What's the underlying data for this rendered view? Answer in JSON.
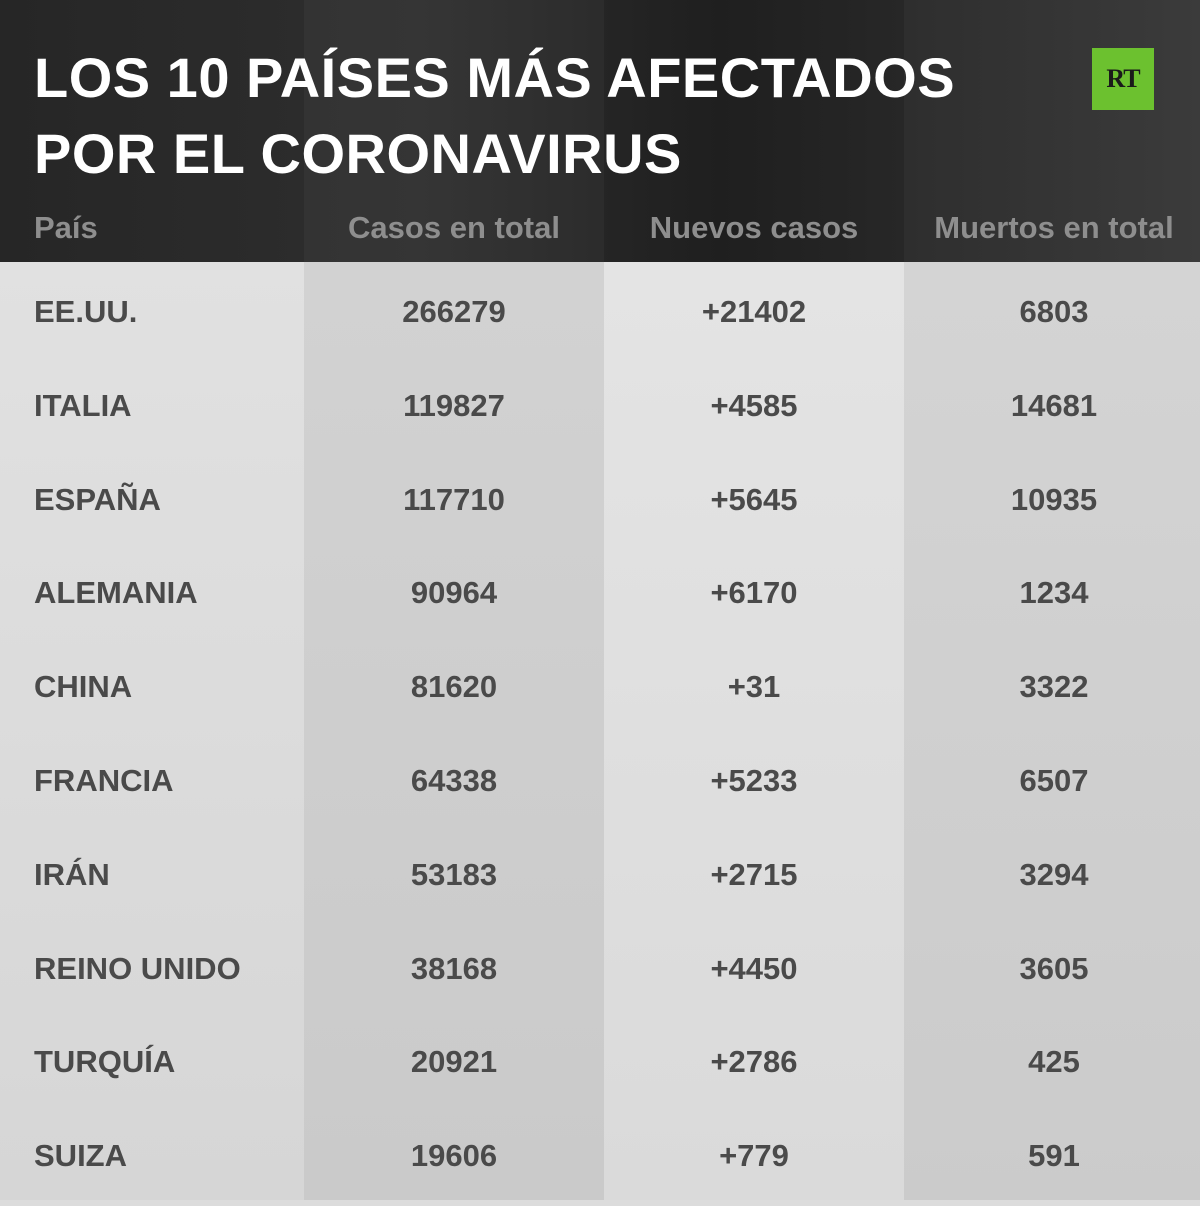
{
  "header": {
    "title_line1": "LOS 10 PAÍSES MÁS AFECTADOS",
    "title_line2": "POR EL CORONAVIRUS",
    "logo_text": "RT"
  },
  "colors": {
    "header_bg": "#2a2a2a",
    "title_text": "#ffffff",
    "column_header_text": "#8e8e8e",
    "cell_text": "#4a4a4a",
    "logo_bg": "#6cc12f",
    "table_bg": "#dcdcdc"
  },
  "chart_data": {
    "type": "table",
    "title": "LOS 10 PAÍSES MÁS AFECTADOS POR EL CORONAVIRUS",
    "columns": [
      "País",
      "Casos en total",
      "Nuevos casos",
      "Muertos en total"
    ],
    "rows": [
      [
        "EE.UU.",
        "266279",
        "+21402",
        "6803"
      ],
      [
        "ITALIA",
        "119827",
        "+4585",
        "14681"
      ],
      [
        "ESPAÑA",
        "117710",
        "+5645",
        "10935"
      ],
      [
        "ALEMANIA",
        "90964",
        "+6170",
        "1234"
      ],
      [
        "CHINA",
        "81620",
        "+31",
        "3322"
      ],
      [
        "FRANCIA",
        "64338",
        "+5233",
        "6507"
      ],
      [
        "IRÁN",
        "53183",
        "+2715",
        "3294"
      ],
      [
        "REINO UNIDO",
        "38168",
        "+4450",
        "3605"
      ],
      [
        "TURQUÍA",
        "20921",
        "+2786",
        "425"
      ],
      [
        "SUIZA",
        "19606",
        "+779",
        "591"
      ]
    ]
  }
}
